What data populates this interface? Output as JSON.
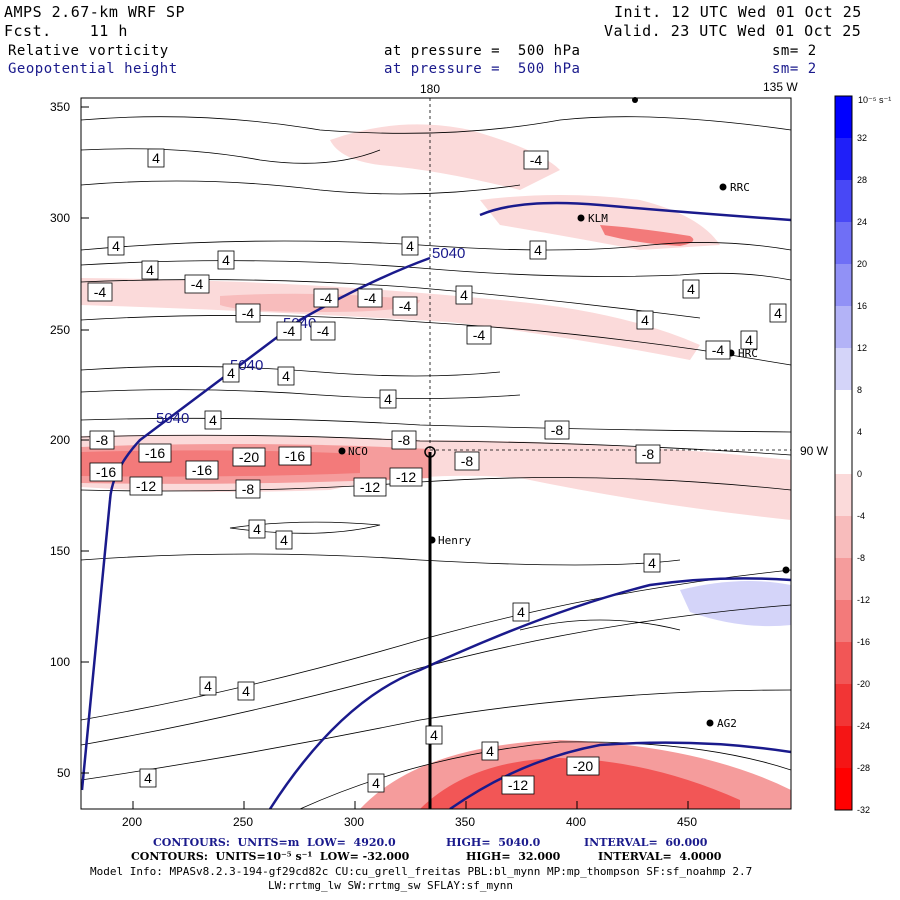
{
  "header": {
    "model": "AMPS 2.67-km WRF SP",
    "forecast": "Fcst.    11 h",
    "init": "Init. 12 UTC Wed 01 Oct 25",
    "valid": "Valid. 23 UTC Wed 01 Oct 25",
    "field1_name": "Relative vorticity",
    "field1_level": "at pressure =  500 hPa",
    "field1_sm": "sm= 2",
    "field2_name": "Geopotential height",
    "field2_level": "at pressure =  500 hPa",
    "field2_sm": "sm= 2"
  },
  "map": {
    "x_ticks": [
      "200",
      "250",
      "300",
      "350",
      "400",
      "450"
    ],
    "y_ticks": [
      "350",
      "300",
      "250",
      "200",
      "150",
      "100",
      "50"
    ],
    "meridian_180": "180",
    "meridian_135w": "135 W",
    "meridian_90w": "90 W",
    "stations": [
      "RRC",
      "KLM",
      "HRC",
      "NCO",
      "Henry",
      "AG2"
    ],
    "height_contour_labels": [
      "5040",
      "5040",
      "5040",
      "5040"
    ],
    "vorticity_labels_positive": [
      "4",
      "4",
      "4",
      "4",
      "4",
      "4",
      "4",
      "4",
      "4",
      "4",
      "4",
      "4",
      "4",
      "4",
      "4",
      "4",
      "4",
      "4",
      "4",
      "4",
      "4",
      "4",
      "4",
      "4",
      "4"
    ],
    "vorticity_labels_negative": [
      "-4",
      "-4",
      "-4",
      "-4",
      "-4",
      "-4",
      "-4",
      "-4",
      "-4",
      "-4",
      "-4",
      "-8",
      "-8",
      "-8",
      "-8",
      "-8",
      "-8",
      "-12",
      "-12",
      "-12",
      "-16",
      "-16",
      "-16",
      "-16",
      "-20",
      "-20",
      "-12"
    ]
  },
  "colorbar": {
    "unit": "10⁻⁵ s⁻¹",
    "labels": [
      "32",
      "28",
      "24",
      "20",
      "16",
      "12",
      "8",
      "4",
      "0",
      "-4",
      "-8",
      "-12",
      "-16",
      "-20",
      "-24",
      "-28",
      "-32"
    ],
    "colors": [
      "#0000ff",
      "#1f1ff9",
      "#4848f6",
      "#6f6ff6",
      "#9191f6",
      "#b3b3f7",
      "#d4d4f9",
      "#ffffff",
      "#ffffff",
      "#fbdada",
      "#f8bcbc",
      "#f59c9c",
      "#f37a7a",
      "#f25656",
      "#f23535",
      "#f51515",
      "#ff0000"
    ]
  },
  "footer": {
    "line1_a": "CONTOURS:  UNITS=m  LOW=  4920.0",
    "line1_b": "HIGH=  5040.0",
    "line1_c": "INTERVAL=  60.000",
    "line2_a": "CONTOURS:  UNITS=10⁻⁵ s⁻¹  LOW= -32.000",
    "line2_b": "HIGH=  32.000",
    "line2_c": "INTERVAL=  4.0000",
    "line3": "Model Info: MPASv8.2.3-194-gf29cd82c CU:cu_grell_freitas PBL:bl_mynn MP:mp_thompson SF:sf_noahmp 2.7",
    "line4": "LW:rrtmg_lw SW:rrtmg_sw SFLAY:sf_mynn"
  }
}
